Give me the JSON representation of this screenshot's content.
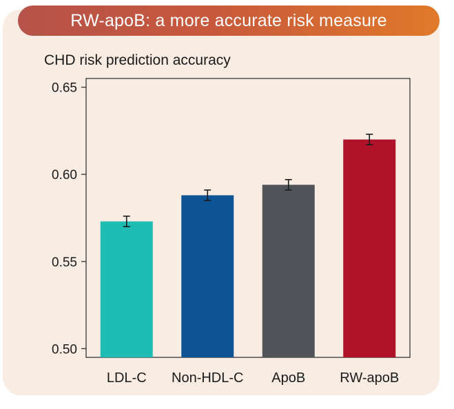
{
  "banner": {
    "title": "RW-apoB: a more accurate risk measure"
  },
  "chart_data": {
    "type": "bar",
    "title": "CHD risk prediction accuracy",
    "xlabel": "",
    "ylabel": "",
    "categories": [
      "LDL-C",
      "Non-HDL-C",
      "ApoB",
      "RW-apoB"
    ],
    "values": [
      0.573,
      0.588,
      0.594,
      0.62
    ],
    "error": [
      0.003,
      0.003,
      0.003,
      0.003
    ],
    "colors": [
      "#1ebcb3",
      "#0d5494",
      "#505459",
      "#b0122a"
    ],
    "ylim": [
      0.495,
      0.655
    ],
    "yticks": [
      0.5,
      0.55,
      0.6,
      0.65
    ],
    "ytick_labels": [
      "0.50",
      "0.55",
      "0.60",
      "0.65"
    ],
    "grid": false
  }
}
